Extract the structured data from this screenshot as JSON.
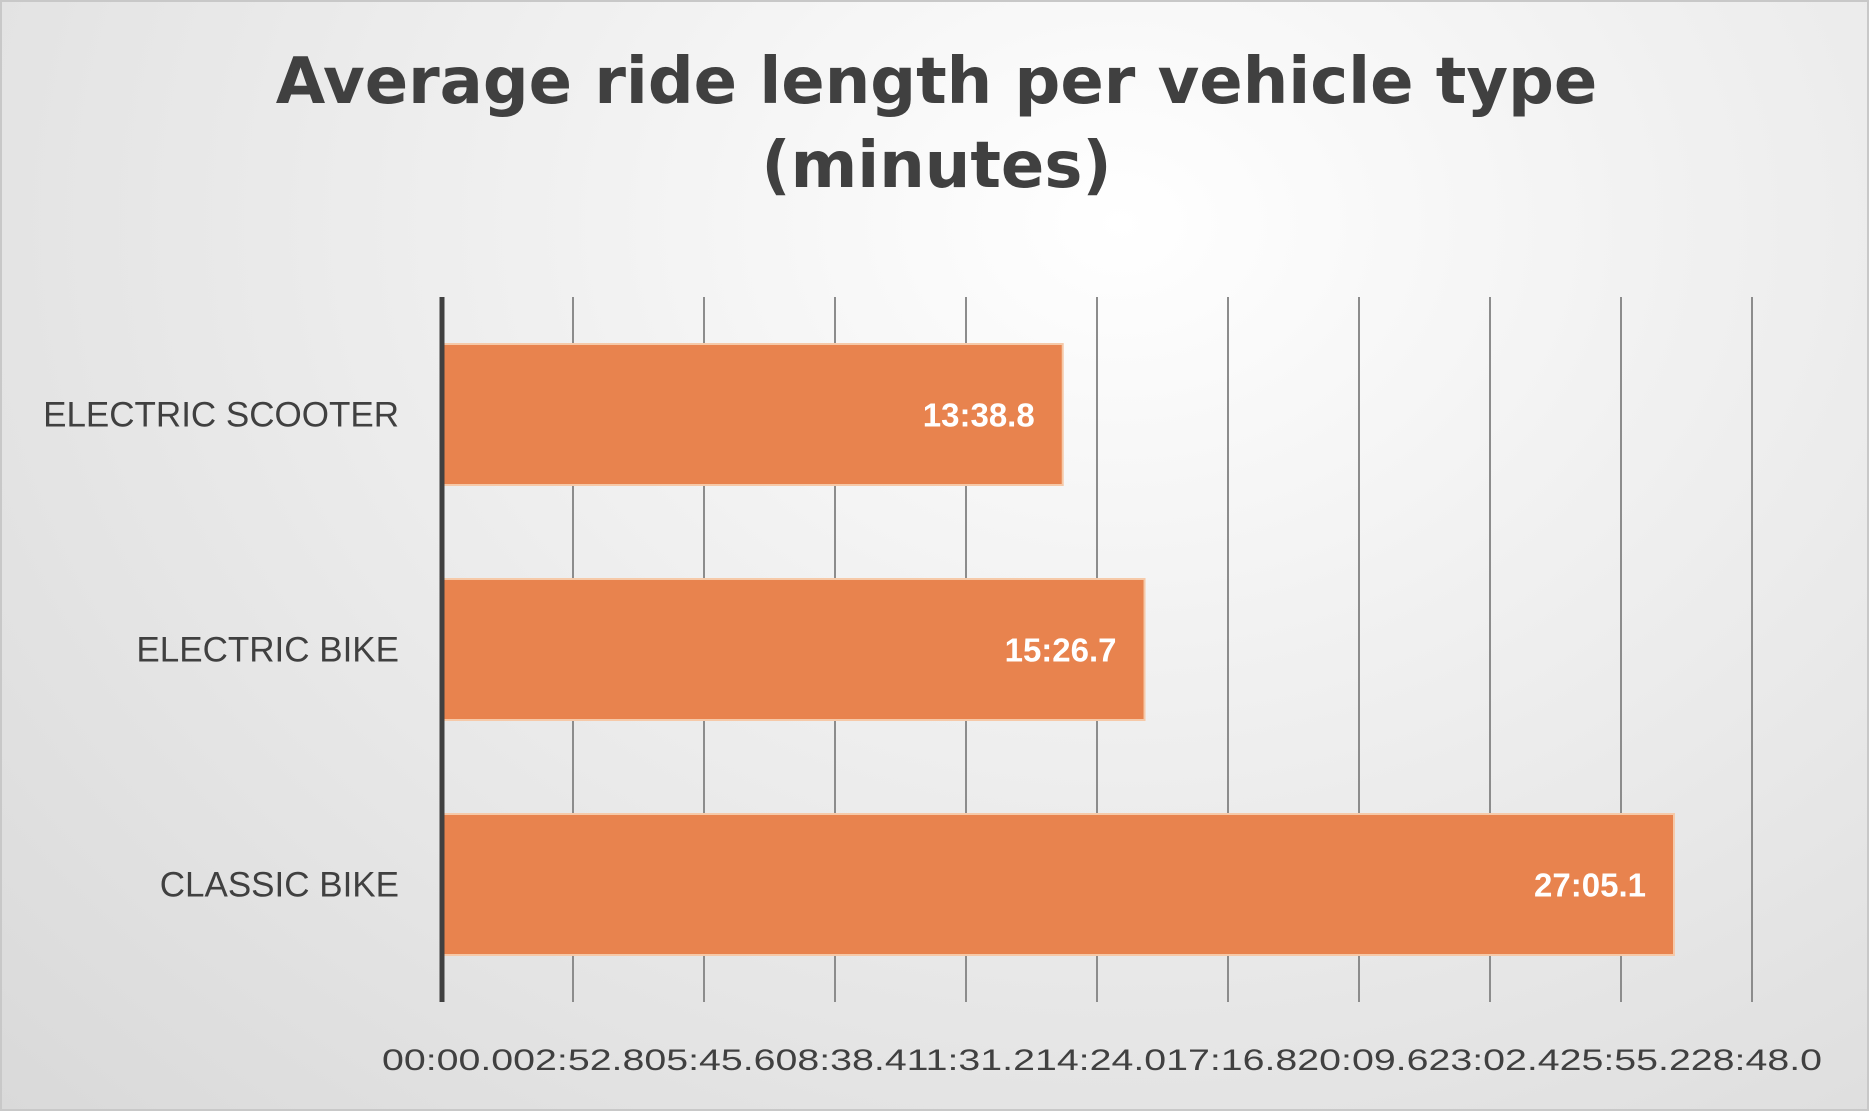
{
  "chart_data": {
    "type": "bar",
    "orientation": "horizontal",
    "title": "Average ride length per vehicle type (minutes)",
    "title_lines": [
      "Average ride length per vehicle type",
      "(minutes)"
    ],
    "categories": [
      "ELECTRIC SCOOTER",
      "ELECTRIC BIKE",
      "CLASSIC BIKE"
    ],
    "values": [
      818.8,
      926.7,
      1625.1
    ],
    "value_labels": [
      "13:38.8",
      "15:26.7",
      "27:05.1"
    ],
    "unit": "minutes:seconds",
    "xlim": [
      0,
      1728
    ],
    "x_ticks": [
      0,
      172.8,
      345.6,
      518.4,
      691.2,
      864,
      1036.8,
      1209.6,
      1382.4,
      1555.2,
      1728
    ],
    "x_tick_labels": [
      "00:00.0",
      "02:52.8",
      "05:45.6",
      "08:38.4",
      "11:31.2",
      "14:24.0",
      "17:16.8",
      "20:09.6",
      "23:02.4",
      "25:55.2",
      "28:48.0"
    ],
    "xlabel": "",
    "ylabel": "",
    "grid": "vertical",
    "legend": "none",
    "colors": {
      "bar": "#E8834E",
      "bar_edge": "#F6C9A8",
      "value_label": "#ffffff",
      "grid": "#8c8c8c",
      "axis": "#404040",
      "text": "#404040"
    }
  }
}
